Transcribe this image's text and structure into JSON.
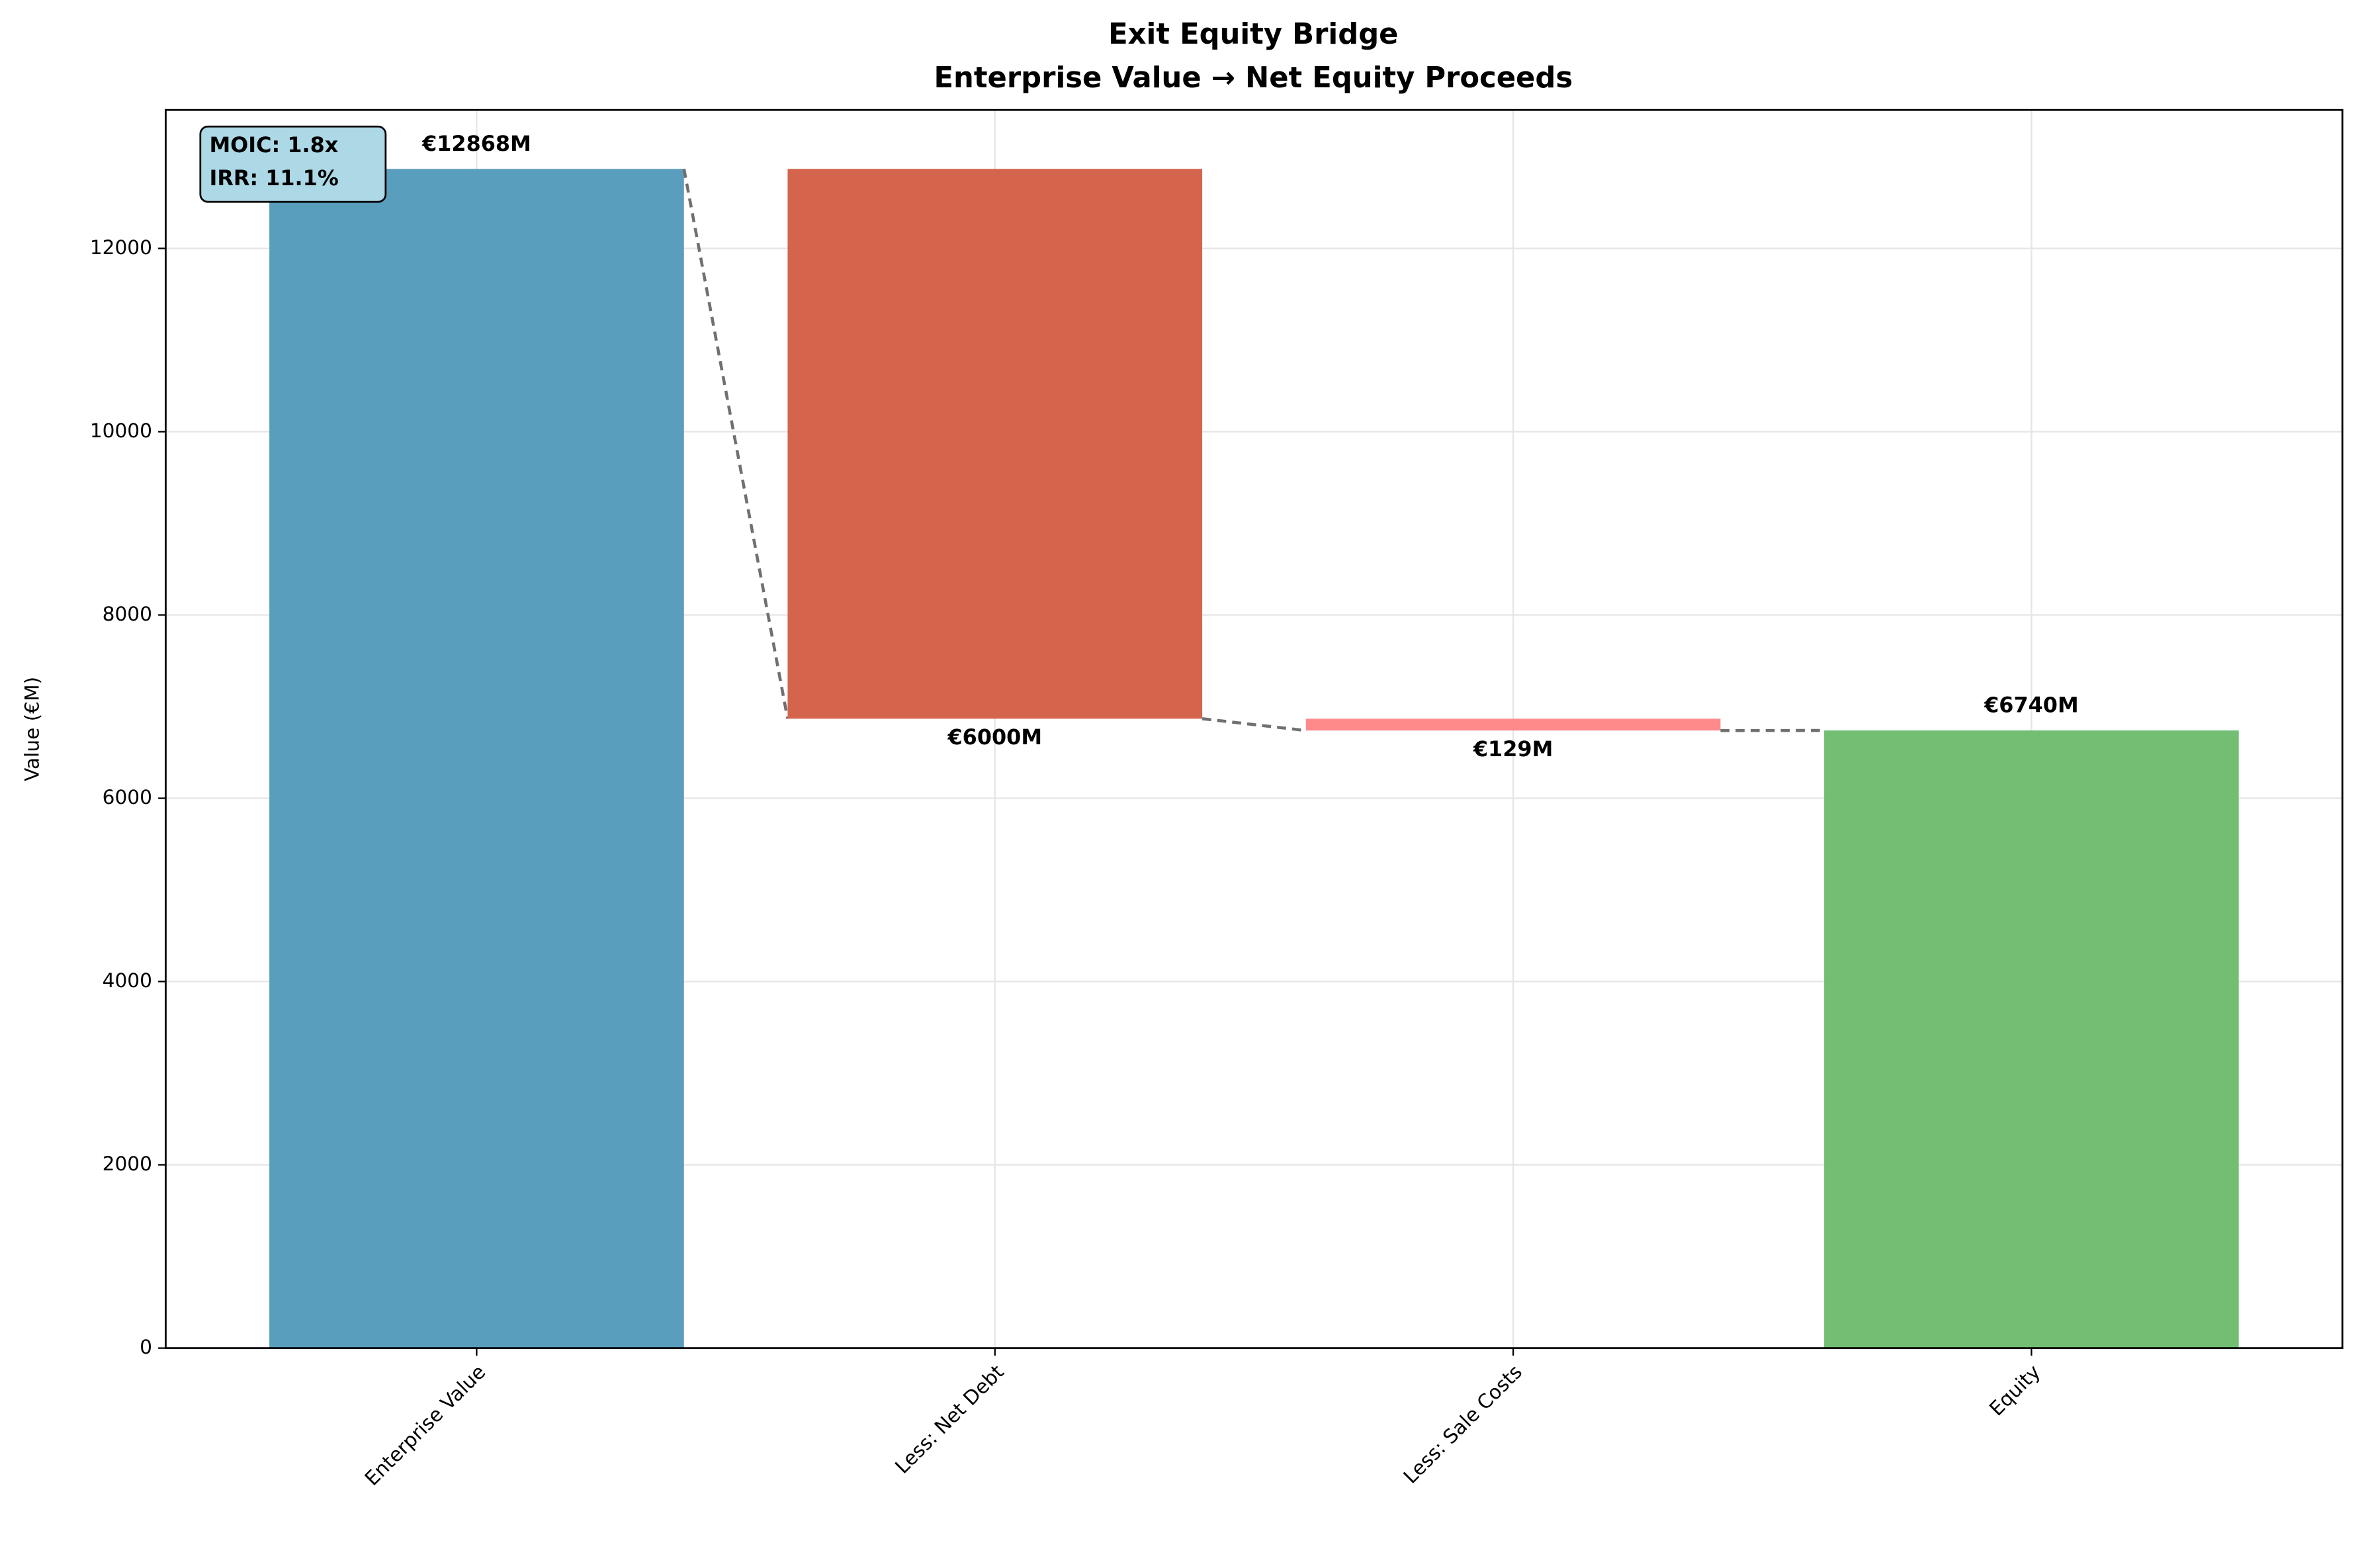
{
  "chart_data": {
    "type": "waterfall",
    "title": [
      "Exit Equity Bridge",
      "Enterprise Value → Net Equity Proceeds"
    ],
    "y_label": "Value (€M)",
    "categories": [
      "Enterprise Value",
      "Less: Net Debt",
      "Less: Sale Costs",
      "Equity"
    ],
    "measure": [
      "total",
      "decrease",
      "decrease",
      "total"
    ],
    "values": [
      12868,
      6000,
      129,
      6740
    ],
    "value_labels": [
      "€12868M",
      "€6000M",
      "€129M",
      "€6740M"
    ],
    "colors": [
      "#5a9ebd",
      "#d4654c",
      "#ff8a8a",
      "#72bf74"
    ],
    "ylim": [
      0,
      13511
    ],
    "yticks": [
      0,
      2000,
      4000,
      6000,
      8000,
      10000,
      12000
    ],
    "grid": true,
    "annotation": [
      "MOIC: 1.8x",
      "IRR: 11.1%"
    ]
  }
}
